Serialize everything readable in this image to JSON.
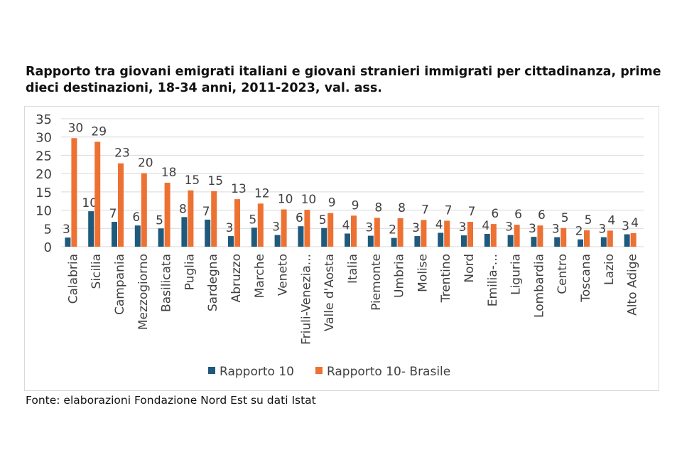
{
  "title": "Rapporto tra giovani emigrati italiani e giovani stranieri immigrati per cittadinanza, prime dieci destinazioni, 18-34 anni, 2011-2023, val. ass.",
  "source": "Fonte: elaborazioni Fondazione Nord Est su dati Istat",
  "chart_data": {
    "type": "bar",
    "title": "Rapporto tra giovani emigrati italiani e giovani stranieri immigrati per cittadinanza, prime dieci destinazioni, 18-34 anni, 2011-2023, val. ass.",
    "xlabel": "",
    "ylabel": "",
    "ylim": [
      0,
      35
    ],
    "yticks": [
      0,
      5,
      10,
      15,
      20,
      25,
      30,
      35
    ],
    "grid": true,
    "legend_position": "bottom",
    "categories": [
      "Calabria",
      "Sicilia",
      "Campania",
      "Mezzogiorno",
      "Basilicata",
      "Puglia",
      "Sardegna",
      "Abruzzo",
      "Marche",
      "Veneto",
      "Friuli-Venezia...",
      "Valle d'Aosta",
      "Italia",
      "Piemonte",
      "Umbria",
      "Molise",
      "Trentino",
      "Nord",
      "Emilia-...",
      "Liguria",
      "Lombardia",
      "Centro",
      "Toscana",
      "Lazio",
      "Alto Adige"
    ],
    "series": [
      {
        "name": "Rapporto 10",
        "color": "#1f5a7c",
        "values": [
          2.5,
          9.7,
          6.8,
          5.8,
          5.0,
          8.1,
          7.4,
          2.9,
          5.2,
          3.2,
          5.6,
          5.1,
          3.6,
          3.0,
          2.4,
          2.9,
          3.8,
          3.1,
          3.5,
          3.2,
          2.7,
          2.6,
          2.0,
          2.6,
          3.4
        ],
        "labels": [
          "3",
          "10",
          "7",
          "6",
          "5",
          "8",
          "7",
          "3",
          "5",
          "3",
          "6",
          "5",
          "4",
          "3",
          "2",
          "3",
          "4",
          "3",
          "4",
          "3",
          "3",
          "3",
          "2",
          "3",
          "3"
        ]
      },
      {
        "name": "Rapporto 10- Brasile",
        "color": "#ed7133",
        "values": [
          29.7,
          28.7,
          22.8,
          20.1,
          17.5,
          15.4,
          15.2,
          13.0,
          11.8,
          10.2,
          10.1,
          9.2,
          8.5,
          7.9,
          7.8,
          7.3,
          7.1,
          6.8,
          6.2,
          6.0,
          5.8,
          5.1,
          4.5,
          4.4,
          3.7
        ],
        "labels": [
          "30",
          "29",
          "23",
          "20",
          "18",
          "15",
          "15",
          "13",
          "12",
          "10",
          "10",
          "9",
          "9",
          "8",
          "8",
          "7",
          "7",
          "7",
          "6",
          "6",
          "6",
          "5",
          "5",
          "4",
          "4"
        ]
      }
    ]
  }
}
